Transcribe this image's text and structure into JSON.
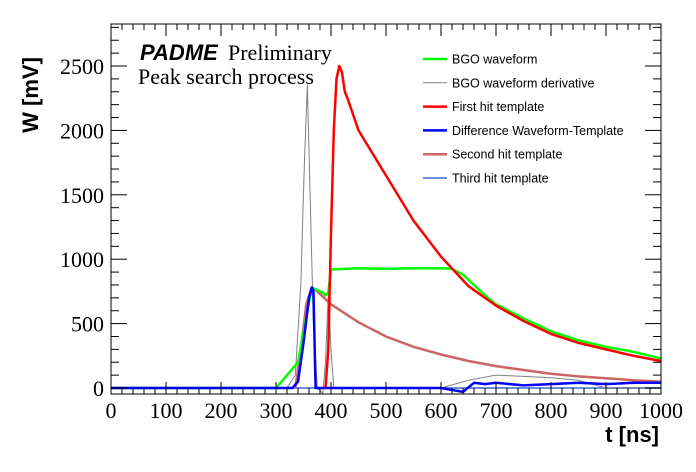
{
  "chart_data": {
    "type": "line",
    "title": "",
    "annotations": {
      "experiment": "PADME",
      "status": "Preliminary",
      "subtitle": "Peak search process"
    },
    "xlabel": "t [ns]",
    "ylabel": "W [mV]",
    "xlim": [
      0,
      1000
    ],
    "ylim": [
      0,
      2800
    ],
    "x_ticks": [
      0,
      100,
      200,
      300,
      400,
      500,
      600,
      700,
      800,
      900,
      1000
    ],
    "y_ticks": [
      0,
      500,
      1000,
      1500,
      2000,
      2500
    ],
    "grid": false,
    "legend_position": "top-right",
    "series": [
      {
        "name": "BGO waveform",
        "color": "#00ff00",
        "x": [
          0,
          300,
          340,
          355,
          365,
          375,
          385,
          390,
          395,
          400,
          450,
          500,
          550,
          600,
          620,
          640,
          660,
          680,
          700,
          750,
          800,
          850,
          900,
          950,
          1000
        ],
        "y": [
          0,
          0,
          200,
          550,
          780,
          760,
          740,
          720,
          740,
          920,
          930,
          925,
          930,
          930,
          925,
          880,
          800,
          720,
          650,
          540,
          440,
          370,
          320,
          280,
          230
        ]
      },
      {
        "name": "BGO waveform derivative",
        "color": "#808080",
        "x": [
          0,
          320,
          335,
          345,
          352,
          357,
          362,
          368,
          375,
          385,
          390,
          395,
          400,
          405,
          410,
          450,
          600,
          650,
          700,
          750,
          800,
          850,
          900,
          1000
        ],
        "y": [
          0,
          0,
          100,
          800,
          1800,
          2350,
          1500,
          500,
          0,
          -40,
          200,
          740,
          300,
          0,
          0,
          0,
          0,
          60,
          100,
          90,
          80,
          60,
          0,
          0
        ]
      },
      {
        "name": "First hit template",
        "color": "#ff0000",
        "x": [
          390,
          395,
          400,
          405,
          410,
          415,
          420,
          425,
          430,
          450,
          500,
          550,
          600,
          650,
          700,
          750,
          800,
          850,
          900,
          950,
          1000
        ],
        "y": [
          0,
          300,
          1200,
          2000,
          2400,
          2500,
          2450,
          2300,
          2250,
          2000,
          1650,
          1300,
          1020,
          790,
          640,
          520,
          420,
          350,
          300,
          250,
          210
        ]
      },
      {
        "name": "Difference Waveform-Template",
        "color": "#0000ff",
        "x": [
          0,
          330,
          340,
          350,
          360,
          365,
          368,
          372,
          375,
          380,
          400,
          500,
          600,
          640,
          660,
          680,
          700,
          750,
          800,
          850,
          900,
          950,
          1000
        ],
        "y": [
          0,
          0,
          50,
          350,
          700,
          780,
          760,
          0,
          0,
          0,
          0,
          0,
          0,
          -30,
          40,
          30,
          40,
          20,
          30,
          40,
          30,
          40,
          40
        ]
      },
      {
        "name": "Second hit template",
        "color": "#cc6666",
        "x": [
          335,
          345,
          355,
          365,
          370,
          400,
          450,
          500,
          550,
          600,
          650,
          700,
          750,
          800,
          850,
          900,
          950,
          1000
        ],
        "y": [
          0,
          300,
          650,
          780,
          770,
          650,
          510,
          400,
          320,
          260,
          210,
          170,
          140,
          110,
          90,
          75,
          60,
          50
        ]
      },
      {
        "name": "Third hit template",
        "color": "#6c8fd9",
        "x": [
          0,
          1000
        ],
        "y": [
          0,
          0
        ]
      }
    ]
  }
}
